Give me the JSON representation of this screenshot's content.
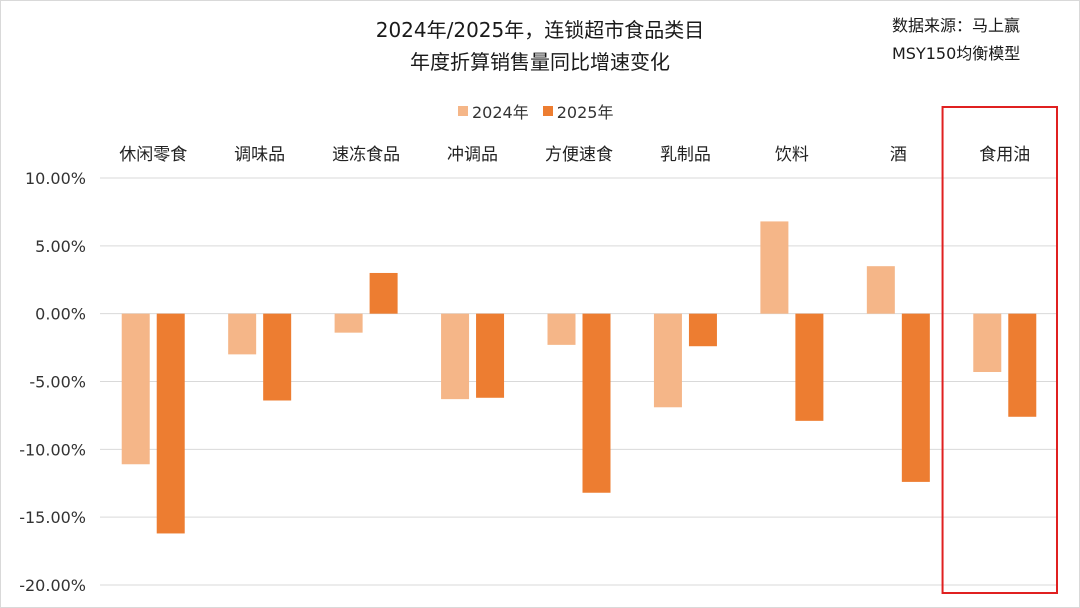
{
  "title": {
    "line1": "2024年/2025年，连锁超市食品类目",
    "line2": "年度折算销售量同比增速变化"
  },
  "source": {
    "line1": "数据来源：马上赢",
    "line2": "MSY150均衡模型"
  },
  "colors": {
    "series_2024": "#f5b688",
    "series_2025": "#ed7d31",
    "highlight_box": "#e02020",
    "gridline": "#d9d9d9"
  },
  "chart_data": {
    "type": "bar",
    "title": "2024年/2025年，连锁超市食品类目年度折算销售量同比增速变化",
    "categories": [
      "休闲零食",
      "调味品",
      "速冻食品",
      "冲调品",
      "方便速食",
      "乳制品",
      "饮料",
      "酒",
      "食用油"
    ],
    "series": [
      {
        "name": "2024年",
        "values": [
          -11.1,
          -3.0,
          -1.4,
          -6.3,
          -2.3,
          -6.9,
          6.8,
          3.5,
          -4.3
        ]
      },
      {
        "name": "2025年",
        "values": [
          -16.2,
          -6.4,
          3.0,
          -6.2,
          -13.2,
          -2.4,
          -7.9,
          -12.4,
          -7.6
        ]
      }
    ],
    "ylim": [
      -20,
      10
    ],
    "yticks": [
      10,
      5,
      0,
      -5,
      -10,
      -15,
      -20
    ],
    "ytick_labels": [
      "10.00%",
      "5.00%",
      "0.00%",
      "-5.00%",
      "-10.00%",
      "-15.00%",
      "-20.00%"
    ],
    "grid": true,
    "legend_position": "top-center",
    "category_labels_position": "top",
    "highlighted_category": "食用油"
  }
}
